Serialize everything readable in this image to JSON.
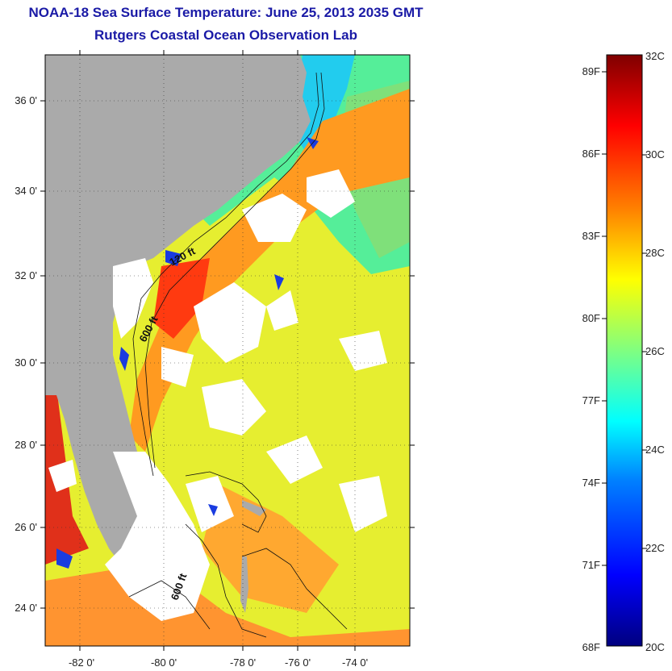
{
  "titles": {
    "line1": "NOAA-18 Sea Surface Temperature:  June 25, 2013 2035 GMT",
    "line2": "Rutgers Coastal Ocean Observation Lab"
  },
  "lat_labels": [
    "36 0'",
    "34 0'",
    "32 0'",
    "30 0'",
    "28 0'",
    "26 0'",
    "24 0'"
  ],
  "lon_labels": [
    "-82 0'",
    "-80 0'",
    "-78 0'",
    "-76 0'",
    "-74 0'"
  ],
  "contour_labels": [
    "120 ft",
    "600 ft",
    "600 ft"
  ],
  "colorbar": {
    "f_labels": [
      "89F",
      "86F",
      "83F",
      "80F",
      "77F",
      "74F",
      "71F",
      "68F"
    ],
    "c_labels": [
      "32C",
      "30C",
      "28C",
      "26C",
      "24C",
      "22C",
      "20C"
    ],
    "min_c": 20,
    "max_c": 32
  },
  "colors": {
    "land": "#aaaaaa",
    "cloud": "#ffffff",
    "title": "#1a1aa6"
  }
}
